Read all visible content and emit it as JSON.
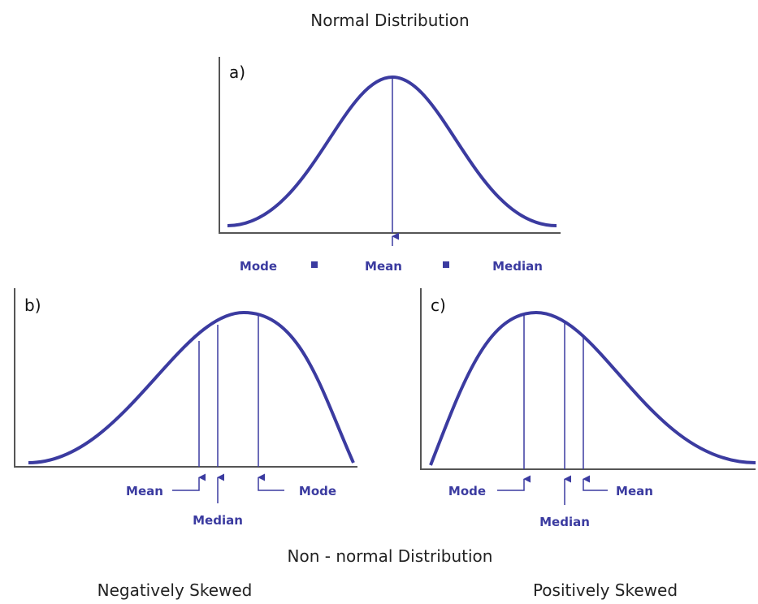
{
  "title": "Normal Distribution",
  "panels": [
    {
      "label": "a)",
      "markers": [
        "Mode",
        "Mean",
        "Median"
      ]
    },
    {
      "label": "b)",
      "markers": [
        "Mean",
        "Median",
        "Mode"
      ]
    },
    {
      "label": "c)",
      "markers": [
        "Mode",
        "Median",
        "Mean"
      ]
    }
  ],
  "footer": {
    "title": "Non - normal Distribution",
    "left": "Negatively Skewed",
    "right": "Positively Skewed"
  }
}
